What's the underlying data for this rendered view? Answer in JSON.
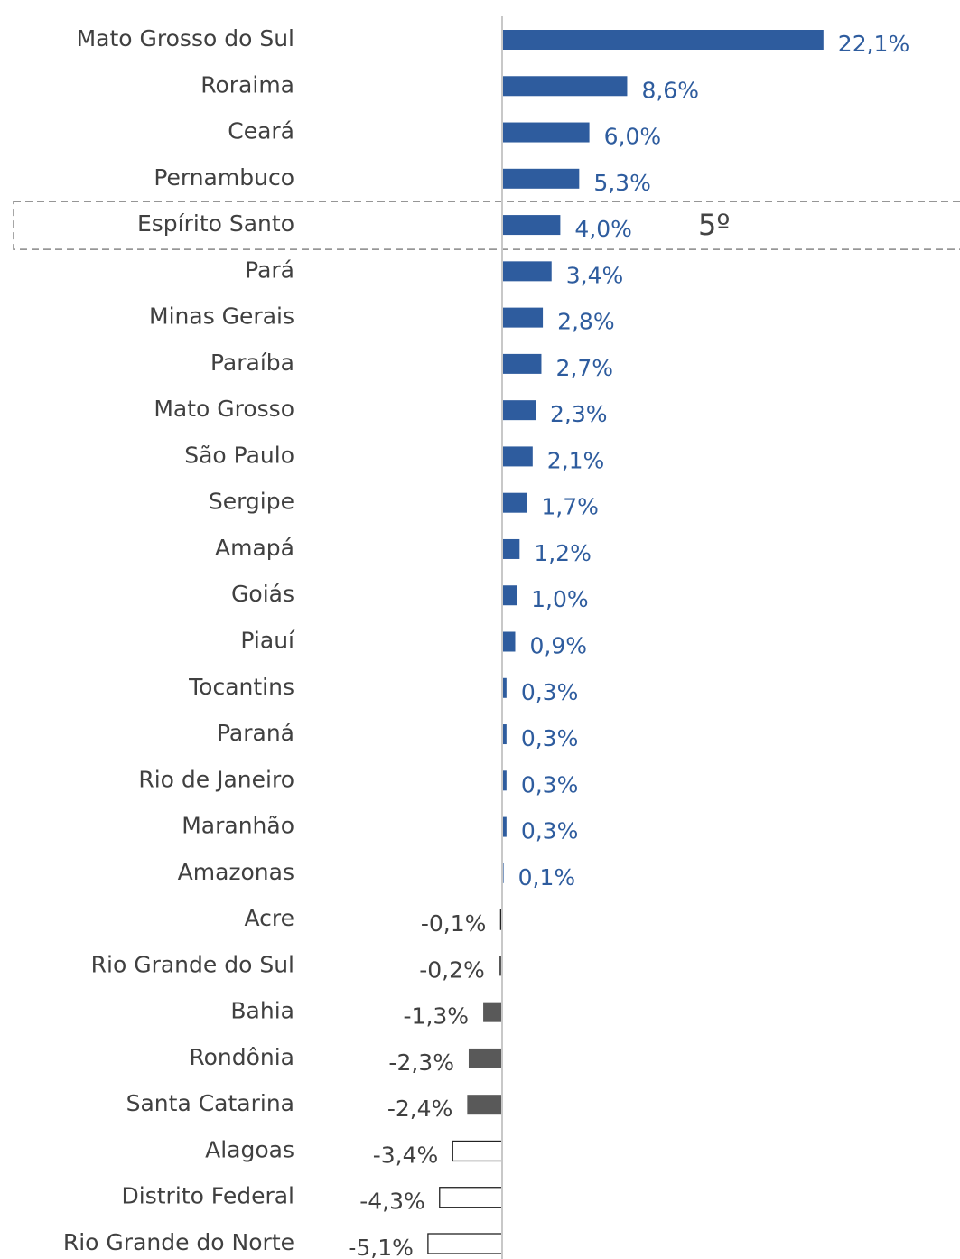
{
  "chart_data": {
    "type": "bar",
    "orientation": "horizontal",
    "categories": [
      "Mato Grosso do Sul",
      "Roraima",
      "Ceará",
      "Pernambuco",
      "Espírito Santo",
      "Pará",
      "Minas Gerais",
      "Paraíba",
      "Mato Grosso",
      "São Paulo",
      "Sergipe",
      "Amapá",
      "Goiás",
      "Piauí",
      "Tocantins",
      "Paraná",
      "Rio de Janeiro",
      "Maranhão",
      "Amazonas",
      "Acre",
      "Rio Grande do Sul",
      "Bahia",
      "Rondônia",
      "Santa Catarina",
      "Alagoas",
      "Distrito Federal",
      "Rio Grande do Norte"
    ],
    "values": [
      22.1,
      8.6,
      6.0,
      5.3,
      4.0,
      3.4,
      2.8,
      2.7,
      2.3,
      2.1,
      1.7,
      1.2,
      1.0,
      0.9,
      0.3,
      0.3,
      0.3,
      0.3,
      0.1,
      -0.1,
      -0.2,
      -1.3,
      -2.3,
      -2.4,
      -3.4,
      -4.3,
      -5.1
    ],
    "value_labels": [
      "22,1%",
      "8,6%",
      "6,0%",
      "5,3%",
      "4,0%",
      "3,4%",
      "2,8%",
      "2,7%",
      "2,3%",
      "2,1%",
      "1,7%",
      "1,2%",
      "1,0%",
      "0,9%",
      "0,3%",
      "0,3%",
      "0,3%",
      "0,3%",
      "0,1%",
      "-0,1%",
      "-0,2%",
      "-1,3%",
      "-2,3%",
      "-2,4%",
      "-3,4%",
      "-4,3%",
      "-5,1%"
    ],
    "colors": [
      "#2e5c9e",
      "#2e5c9e",
      "#2e5c9e",
      "#2e5c9e",
      "#2e5c9e",
      "#2e5c9e",
      "#2e5c9e",
      "#2e5c9e",
      "#2e5c9e",
      "#2e5c9e",
      "#2e5c9e",
      "#2e5c9e",
      "#2e5c9e",
      "#2e5c9e",
      "#2e5c9e",
      "#2e5c9e",
      "#2e5c9e",
      "#2e5c9e",
      "#2e5c9e",
      "#ffffff",
      "#595959",
      "#595959",
      "#595959",
      "#595959",
      "#ffffff",
      "#ffffff",
      "#ffffff"
    ],
    "annotations": [
      {
        "text": "5º",
        "category": "Espírito Santo"
      }
    ]
  }
}
